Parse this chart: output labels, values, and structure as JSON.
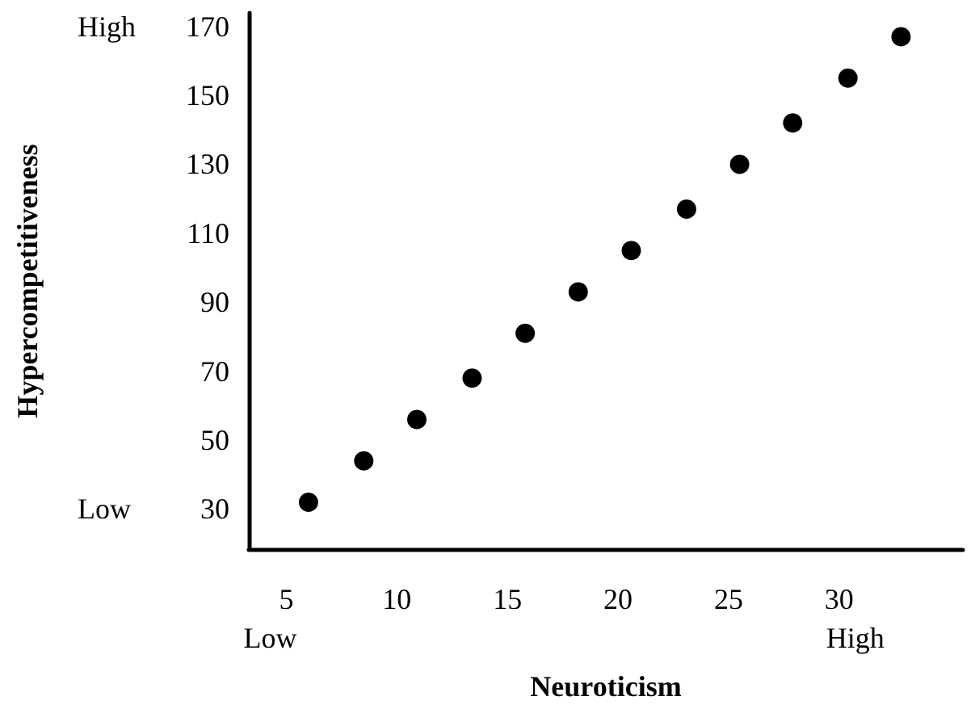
{
  "chart_data": {
    "type": "scatter",
    "xlabel": "Neuroticism",
    "ylabel": "Hypercompetitiveness",
    "x": [
      6.0,
      8.5,
      10.9,
      13.4,
      15.8,
      18.2,
      20.6,
      23.1,
      25.5,
      27.9,
      30.4,
      32.8
    ],
    "values": [
      32,
      44,
      56,
      68,
      81,
      93,
      105,
      117,
      130,
      142,
      155,
      167
    ],
    "color": "#000000",
    "marker": "circle",
    "grid": false,
    "xlim": [
      3.3,
      35.6
    ],
    "xticks": [
      5,
      10,
      15,
      20,
      25,
      30
    ],
    "ylim": [
      18.4,
      173.9
    ],
    "yticks": [
      30,
      50,
      70,
      90,
      110,
      130,
      150,
      170
    ],
    "annotations": [
      "High",
      "Low",
      "Low",
      "High"
    ]
  }
}
